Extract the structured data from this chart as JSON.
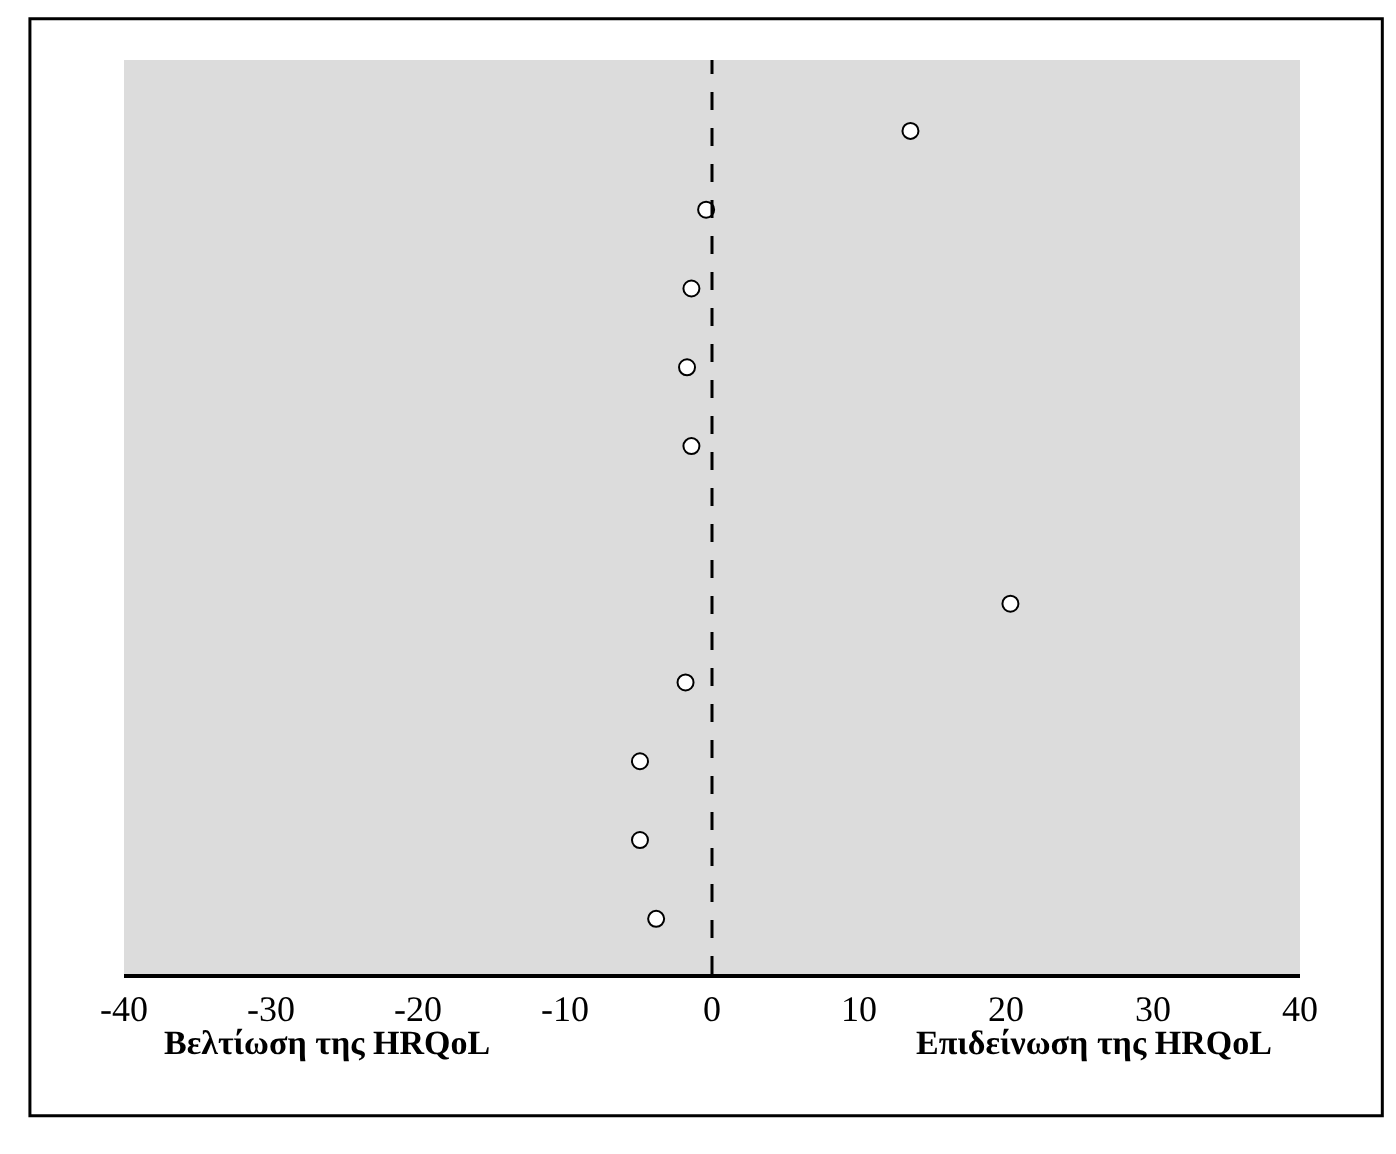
{
  "chart_data": {
    "type": "scatter",
    "orientation": "horizontal",
    "categories": [
      null,
      null,
      null,
      null,
      null,
      null,
      null,
      null,
      null,
      null,
      null
    ],
    "values": [
      13.5,
      -0.4,
      -1.4,
      -1.7,
      -1.4,
      null,
      20.3,
      -1.8,
      -4.9,
      -4.9,
      -3.8
    ],
    "color": "#ffffff",
    "marker": "circle",
    "xlim": [
      -40,
      40
    ],
    "xticks": [
      -40,
      -30,
      -20,
      -10,
      0,
      10,
      20,
      30,
      40
    ],
    "ref_lines": [
      {
        "axis": "x",
        "value": 0,
        "line_style": "dashed",
        "color": "#000000"
      }
    ],
    "annotations": [
      "Βελτίωση της HRQoL",
      "Επιδείνωση της HRQoL"
    ],
    "tick_labels": "x",
    "grid": false,
    "legend": false
  }
}
